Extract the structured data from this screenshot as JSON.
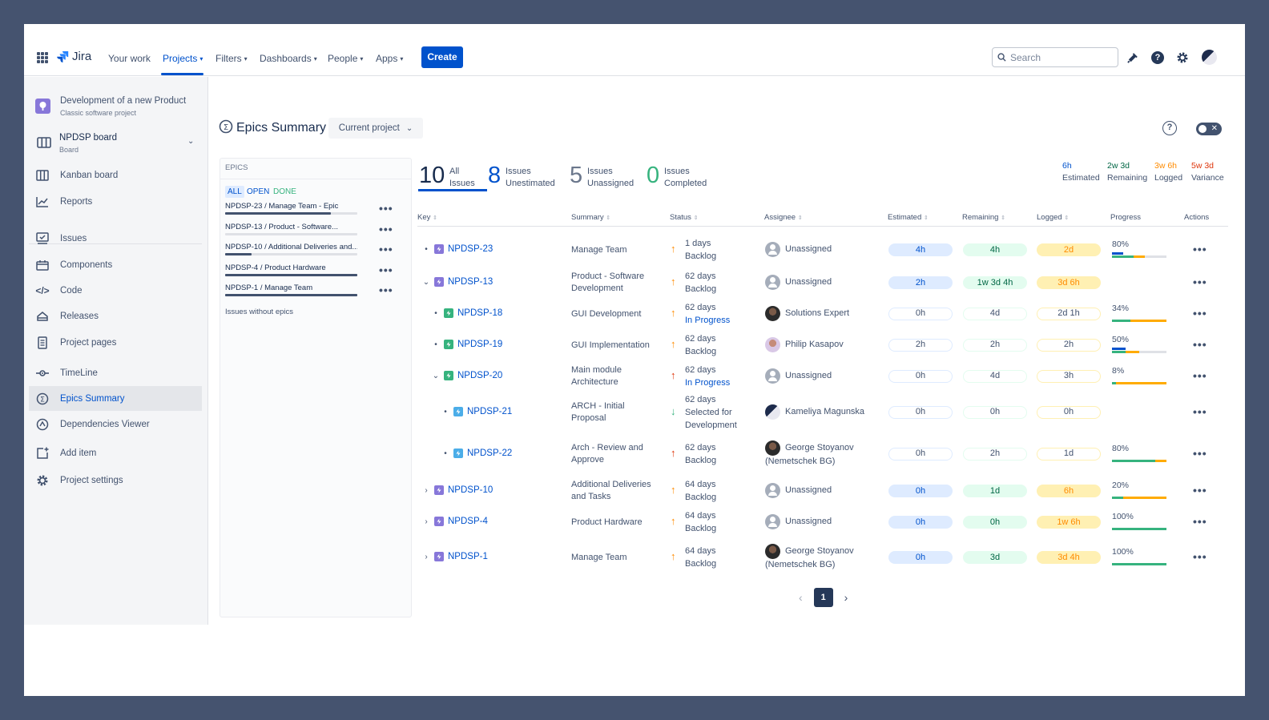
{
  "topnav": {
    "logo": "Jira",
    "items": [
      "Your work",
      "Projects",
      "Filters",
      "Dashboards",
      "People",
      "Apps"
    ],
    "create": "Create",
    "search_placeholder": "Search"
  },
  "sidebar": {
    "project_name": "Development of a new Product",
    "project_type": "Classic software project",
    "board_name": "NPDSP board",
    "board_sub": "Board",
    "items": [
      "Kanban board",
      "Reports",
      "Issues",
      "Components",
      "Code",
      "Releases",
      "Project pages",
      "TimeLine",
      "Epics Summary",
      "Dependencies Viewer",
      "Add item",
      "Project settings"
    ],
    "active": "Epics Summary"
  },
  "page": {
    "title": "Epics Summary",
    "scope": "Current project"
  },
  "epics_panel": {
    "header": "EPICS",
    "filters": [
      "ALL",
      "OPEN",
      "DONE"
    ],
    "epics": [
      {
        "label": "NPDSP-23 / Manage Team - Epic",
        "progress": 0.8
      },
      {
        "label": "NPDSP-13 / Product - Software...",
        "progress": 0
      },
      {
        "label": "NPDSP-10 / Additional Deliveries and...",
        "progress": 0.2
      },
      {
        "label": "NPDSP-4 / Product Hardware",
        "progress": 1.0
      },
      {
        "label": "NPDSP-1 / Manage Team",
        "progress": 1.0
      }
    ],
    "no_epics": "Issues without epics"
  },
  "summary": [
    {
      "count": "10",
      "label1": "All",
      "label2": "Issues",
      "color": "#172b4d"
    },
    {
      "count": "8",
      "label1": "Issues",
      "label2": "Unestimated",
      "color": "#0052cc"
    },
    {
      "count": "5",
      "label1": "Issues",
      "label2": "Unassigned",
      "color": "#6b778c"
    },
    {
      "count": "0",
      "label1": "Issues",
      "label2": "Completed",
      "color": "#36b37e"
    }
  ],
  "totals": [
    {
      "value": "6h",
      "label": "Estimated",
      "color": "#0052cc"
    },
    {
      "value": "2w 3d",
      "label": "Remaining",
      "color": "#006644"
    },
    {
      "value": "3w 6h",
      "label": "Logged",
      "color": "#ff8b00"
    },
    {
      "value": "5w 3d",
      "label": "Variance",
      "color": "#de350b"
    }
  ],
  "columns": [
    "Key",
    "Summary",
    "Status",
    "Assignee",
    "Estimated",
    "Remaining",
    "Logged",
    "Progress",
    "Actions"
  ],
  "rows": [
    {
      "key": "NPDSP-23",
      "type": "epic",
      "indent": 0,
      "toggle": "bullet",
      "summary": "Manage Team",
      "days": "1 days",
      "status": "Backlog",
      "status_color": "#42526e",
      "priority": "medium",
      "assignee": "Unassigned",
      "assignee2": "",
      "avatar": "unassigned",
      "est": "4h",
      "rem": "4h",
      "log": "2d",
      "filled": true,
      "progress": "80%",
      "prog_blue": 0.4,
      "prog_green": 0.4,
      "prog_orange": 0.2
    },
    {
      "key": "NPDSP-13",
      "type": "epic",
      "indent": 0,
      "toggle": "down",
      "summary": "Product - Software Development",
      "days": "62 days",
      "status": "Backlog",
      "status_color": "#42526e",
      "priority": "medium",
      "assignee": "Unassigned",
      "assignee2": "",
      "avatar": "unassigned",
      "est": "2h",
      "rem": "1w 3d 4h",
      "log": "3d 6h",
      "filled": true,
      "progress": "",
      "prog_blue": 0,
      "prog_green": 0,
      "prog_orange": 0
    },
    {
      "key": "NPDSP-18",
      "type": "story",
      "indent": 1,
      "toggle": "bullet",
      "summary": "GUI Development",
      "days": "62 days",
      "status": "In Progress",
      "status_color": "#0052cc",
      "priority": "medium",
      "assignee": "Solutions Expert",
      "assignee2": "",
      "avatar": "dark",
      "est": "0h",
      "rem": "4d",
      "log": "2d 1h",
      "filled": false,
      "progress": "34%",
      "prog_blue": 0,
      "prog_green": 0.34,
      "prog_orange": 0.66
    },
    {
      "key": "NPDSP-19",
      "type": "story",
      "indent": 1,
      "toggle": "bullet",
      "summary": "GUI Implementation",
      "days": "62 days",
      "status": "Backlog",
      "status_color": "#42526e",
      "priority": "medium",
      "assignee": "Philip Kasapov",
      "assignee2": "",
      "avatar": "light",
      "est": "2h",
      "rem": "2h",
      "log": "2h",
      "filled": false,
      "progress": "50%",
      "prog_blue": 0.5,
      "prog_green": 0.25,
      "prog_orange": 0.25
    },
    {
      "key": "NPDSP-20",
      "type": "story",
      "indent": 1,
      "toggle": "down",
      "summary": "Main module Architecture",
      "days": "62 days",
      "status": "In Progress",
      "status_color": "#0052cc",
      "priority": "high",
      "assignee": "Unassigned",
      "assignee2": "",
      "avatar": "unassigned",
      "est": "0h",
      "rem": "4d",
      "log": "3h",
      "filled": false,
      "progress": "8%",
      "prog_blue": 0,
      "prog_green": 0.08,
      "prog_orange": 0.92
    },
    {
      "key": "NPDSP-21",
      "type": "subtask",
      "indent": 2,
      "toggle": "bullet",
      "summary": "ARCH - Initial Proposal",
      "days": "62 days",
      "status": "Selected for Development",
      "status_color": "#42526e",
      "priority": "low",
      "assignee": "Kameliya Magunska",
      "assignee2": "",
      "avatar": "mixed",
      "est": "0h",
      "rem": "0h",
      "log": "0h",
      "filled": false,
      "progress": "",
      "prog_blue": 0,
      "prog_green": 0,
      "prog_orange": 0
    },
    {
      "key": "NPDSP-22",
      "type": "subtask",
      "indent": 2,
      "toggle": "bullet",
      "summary": "Arch - Review and Approve",
      "days": "62 days",
      "status": "Backlog",
      "status_color": "#42526e",
      "priority": "high",
      "assignee": "George Stoyanov",
      "assignee2": "(Nemetschek BG)",
      "avatar": "dark",
      "est": "0h",
      "rem": "2h",
      "log": "1d",
      "filled": false,
      "progress": "80%",
      "prog_blue": 0,
      "prog_green": 0.8,
      "prog_orange": 0.2
    },
    {
      "key": "NPDSP-10",
      "type": "epic",
      "indent": 0,
      "toggle": "right",
      "summary": "Additional Deliveries and Tasks",
      "days": "64 days",
      "status": "Backlog",
      "status_color": "#42526e",
      "priority": "medium",
      "assignee": "Unassigned",
      "assignee2": "",
      "avatar": "unassigned",
      "est": "0h",
      "rem": "1d",
      "log": "6h",
      "filled": true,
      "progress": "20%",
      "prog_blue": 0,
      "prog_green": 0.2,
      "prog_orange": 0.8
    },
    {
      "key": "NPDSP-4",
      "type": "epic",
      "indent": 0,
      "toggle": "right",
      "summary": "Product Hardware",
      "days": "64 days",
      "status": "Backlog",
      "status_color": "#42526e",
      "priority": "medium",
      "assignee": "Unassigned",
      "assignee2": "",
      "avatar": "unassigned",
      "est": "0h",
      "rem": "0h",
      "log": "1w 6h",
      "filled": true,
      "progress": "100%",
      "prog_blue": 0,
      "prog_green": 1.0,
      "prog_orange": 0
    },
    {
      "key": "NPDSP-1",
      "type": "epic",
      "indent": 0,
      "toggle": "right",
      "summary": "Manage Team",
      "days": "64 days",
      "status": "Backlog",
      "status_color": "#42526e",
      "priority": "medium",
      "assignee": "George Stoyanov",
      "assignee2": "(Nemetschek BG)",
      "avatar": "dark",
      "est": "0h",
      "rem": "3d",
      "log": "3d 4h",
      "filled": true,
      "progress": "100%",
      "prog_blue": 0,
      "prog_green": 1.0,
      "prog_orange": 0
    }
  ],
  "pagination": {
    "current": "1"
  }
}
